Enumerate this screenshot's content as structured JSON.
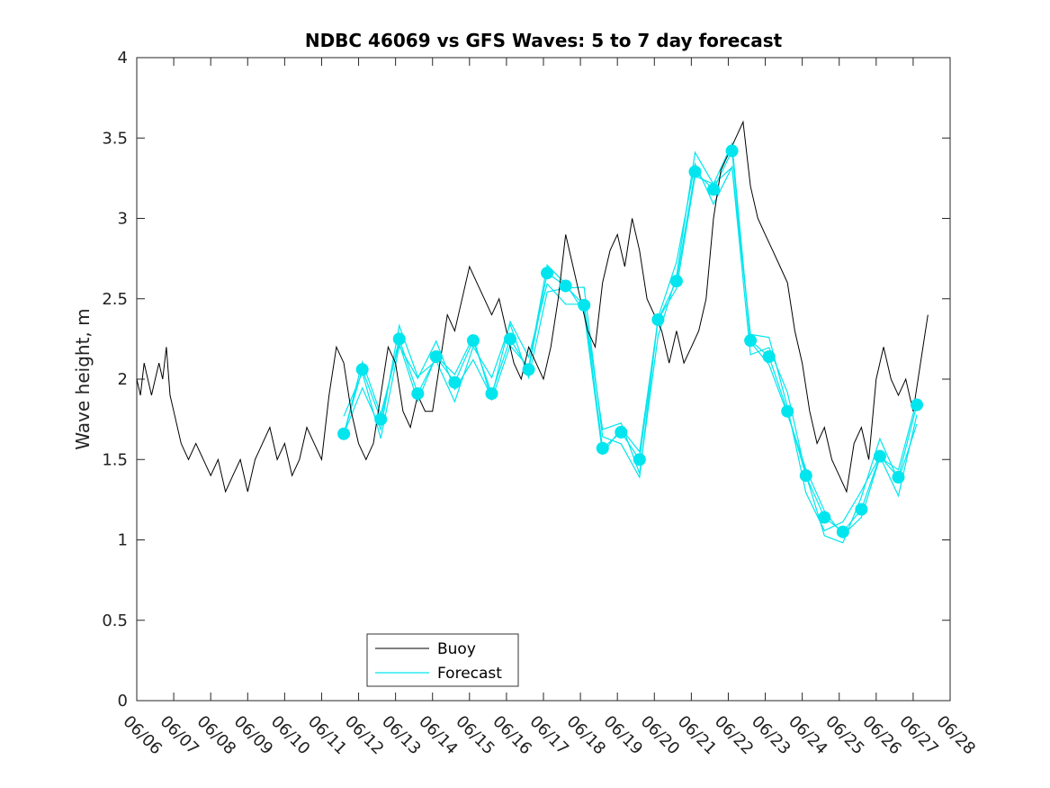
{
  "chart_data": {
    "type": "line",
    "title": "NDBC 46069 vs GFS Waves: 5 to 7 day forecast",
    "xlabel": "",
    "ylabel": "Wave height, m",
    "ylim": [
      0,
      4
    ],
    "yticks": [
      "0",
      "0.5",
      "1",
      "1.5",
      "2",
      "2.5",
      "3",
      "3.5",
      "4"
    ],
    "xlim": [
      0,
      22
    ],
    "xtick_labels": [
      "06/06",
      "06/07",
      "06/08",
      "06/09",
      "06/10",
      "06/11",
      "06/12",
      "06/13",
      "06/14",
      "06/15",
      "06/16",
      "06/17",
      "06/18",
      "06/19",
      "06/20",
      "06/21",
      "06/22",
      "06/23",
      "06/24",
      "06/25",
      "06/26",
      "06/27",
      "06/28"
    ],
    "legend": {
      "placement": "bottom-center",
      "entries": [
        "Buoy",
        "Forecast"
      ]
    },
    "colors": {
      "buoy": "#000000",
      "forecast": "#00e5ee"
    },
    "series": [
      {
        "name": "Buoy",
        "x": [
          0,
          0.1,
          0.2,
          0.3,
          0.4,
          0.5,
          0.6,
          0.7,
          0.8,
          0.9,
          1.0,
          1.2,
          1.4,
          1.6,
          1.8,
          2.0,
          2.2,
          2.4,
          2.6,
          2.8,
          3.0,
          3.2,
          3.4,
          3.6,
          3.8,
          4.0,
          4.2,
          4.4,
          4.6,
          4.8,
          5.0,
          5.2,
          5.4,
          5.6,
          5.8,
          6.0,
          6.2,
          6.4,
          6.6,
          6.8,
          7.0,
          7.2,
          7.4,
          7.6,
          7.8,
          8.0,
          8.2,
          8.4,
          8.6,
          8.8,
          9.0,
          9.2,
          9.4,
          9.6,
          9.8,
          10.0,
          10.2,
          10.4,
          10.6,
          10.8,
          11.0,
          11.2,
          11.4,
          11.6,
          11.8,
          12.0,
          12.2,
          12.4,
          12.6,
          12.8,
          13.0,
          13.2,
          13.4,
          13.6,
          13.8,
          14.0,
          14.2,
          14.4,
          14.6,
          14.8,
          15.0,
          15.2,
          15.4,
          15.6,
          15.8,
          16.0,
          16.2,
          16.4,
          16.6,
          16.8,
          17.0,
          17.2,
          17.4,
          17.6,
          17.8,
          18.0,
          18.2,
          18.4,
          18.6,
          18.8,
          19.0,
          19.2,
          19.4,
          19.6,
          19.8,
          20.0,
          20.2,
          20.4,
          20.6,
          20.8,
          21.0,
          21.2,
          21.4
        ],
        "y": [
          2.0,
          1.9,
          2.1,
          2.0,
          1.9,
          2.0,
          2.1,
          2.0,
          2.2,
          1.9,
          1.8,
          1.6,
          1.5,
          1.6,
          1.5,
          1.4,
          1.5,
          1.3,
          1.4,
          1.5,
          1.3,
          1.5,
          1.6,
          1.7,
          1.5,
          1.6,
          1.4,
          1.5,
          1.7,
          1.6,
          1.5,
          1.9,
          2.2,
          2.1,
          1.8,
          1.6,
          1.5,
          1.6,
          1.9,
          2.2,
          2.1,
          1.8,
          1.7,
          1.9,
          1.8,
          1.8,
          2.1,
          2.4,
          2.3,
          2.5,
          2.7,
          2.6,
          2.5,
          2.4,
          2.5,
          2.3,
          2.1,
          2.0,
          2.2,
          2.1,
          2.0,
          2.2,
          2.5,
          2.9,
          2.7,
          2.5,
          2.3,
          2.2,
          2.6,
          2.8,
          2.9,
          2.7,
          3.0,
          2.8,
          2.5,
          2.4,
          2.3,
          2.1,
          2.3,
          2.1,
          2.2,
          2.3,
          2.5,
          3.0,
          3.3,
          3.4,
          3.5,
          3.6,
          3.2,
          3.0,
          2.9,
          2.8,
          2.7,
          2.6,
          2.3,
          2.1,
          1.8,
          1.6,
          1.7,
          1.5,
          1.4,
          1.3,
          1.6,
          1.7,
          1.5,
          2.0,
          2.2,
          2.0,
          1.9,
          2.0,
          1.8,
          2.1,
          2.4
        ]
      },
      {
        "name": "Forecast",
        "x": [
          5.6,
          6.1,
          6.6,
          7.1,
          7.6,
          8.1,
          8.6,
          9.1,
          9.6,
          10.1,
          10.6,
          11.1,
          11.6,
          12.1,
          12.6,
          13.1,
          13.6,
          14.1,
          14.6,
          15.1,
          15.6,
          16.1,
          16.6,
          17.1,
          17.6,
          18.1,
          18.6,
          19.1,
          19.6,
          20.1,
          20.6,
          21.1
        ],
        "y": [
          1.66,
          2.06,
          1.75,
          2.25,
          1.91,
          2.14,
          1.98,
          2.24,
          1.91,
          2.25,
          2.06,
          2.66,
          2.58,
          2.46,
          1.57,
          1.67,
          1.5,
          2.37,
          2.61,
          3.29,
          3.18,
          3.42,
          2.24,
          2.14,
          1.8,
          1.4,
          1.14,
          1.05,
          1.19,
          1.52,
          1.39,
          1.84
        ]
      }
    ]
  }
}
